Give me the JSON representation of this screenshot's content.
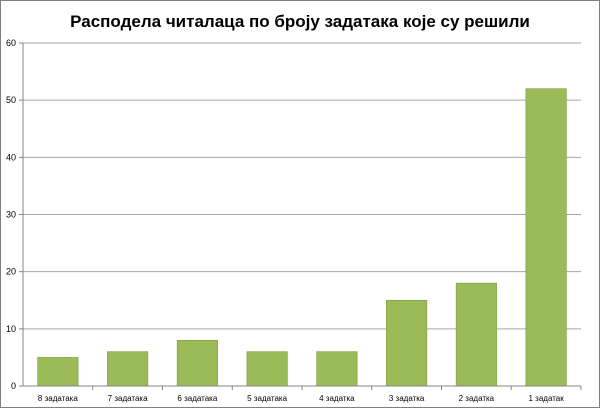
{
  "chart_data": {
    "type": "bar",
    "title": "Расподела читалаца по броју задатака које су решили",
    "xlabel": "",
    "ylabel": "",
    "categories": [
      "8 задатака",
      "7 задатака",
      "6 задатака",
      "5 задатака",
      "4 задатка",
      "3 задатка",
      "2 задатка",
      "1 задатак"
    ],
    "values": [
      5,
      6,
      8,
      6,
      6,
      15,
      18,
      52
    ],
    "ylim": [
      0,
      60
    ],
    "yticks": [
      0,
      10,
      20,
      30,
      40,
      50,
      60
    ],
    "grid": true,
    "legend": "none",
    "colors": {
      "bar": "#9bbb59",
      "bar_edge": "#7a9a3a",
      "grid": "#a6a6a6",
      "axis": "#868686"
    }
  }
}
